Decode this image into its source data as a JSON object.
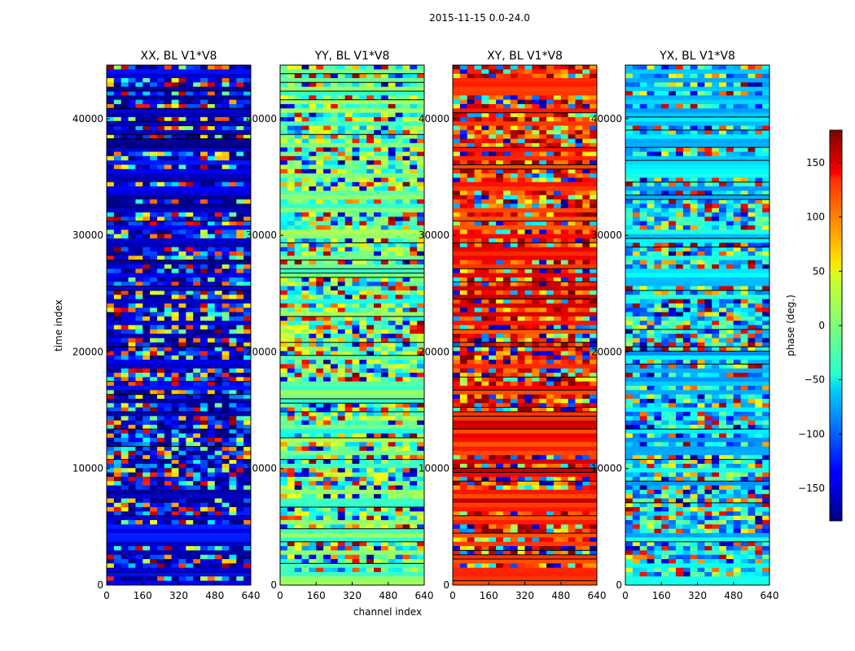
{
  "figure": {
    "suptitle": "2015-11-15 0.0-24.0"
  },
  "chart_data": {
    "type": "heatmap",
    "xlabel": "channel index",
    "ylabel": "time index",
    "x_ticks": [
      0,
      160,
      320,
      480,
      640
    ],
    "y_ticks": [
      0,
      10000,
      20000,
      30000,
      40000
    ],
    "xlim": [
      0,
      640
    ],
    "ylim": [
      0,
      44600
    ],
    "colormap": "jet",
    "colorbar": {
      "label": "phase (deg.)",
      "range": [
        -180,
        180
      ],
      "ticks": [
        150,
        100,
        50,
        0,
        -50,
        -100,
        -150
      ],
      "tick_labels": [
        "150",
        "100",
        "50",
        "0",
        "−50",
        "−100",
        "−150"
      ]
    },
    "panels": [
      {
        "id": "xx",
        "title": "XX, BL V1*V8",
        "dominant_phase": -150
      },
      {
        "id": "yy",
        "title": "YY, BL V1*V8",
        "dominant_phase": -10
      },
      {
        "id": "xy",
        "title": "XY, BL V1*V8",
        "dominant_phase": 130
      },
      {
        "id": "yx",
        "title": "YX, BL V1*V8",
        "dominant_phase": -60
      }
    ]
  }
}
